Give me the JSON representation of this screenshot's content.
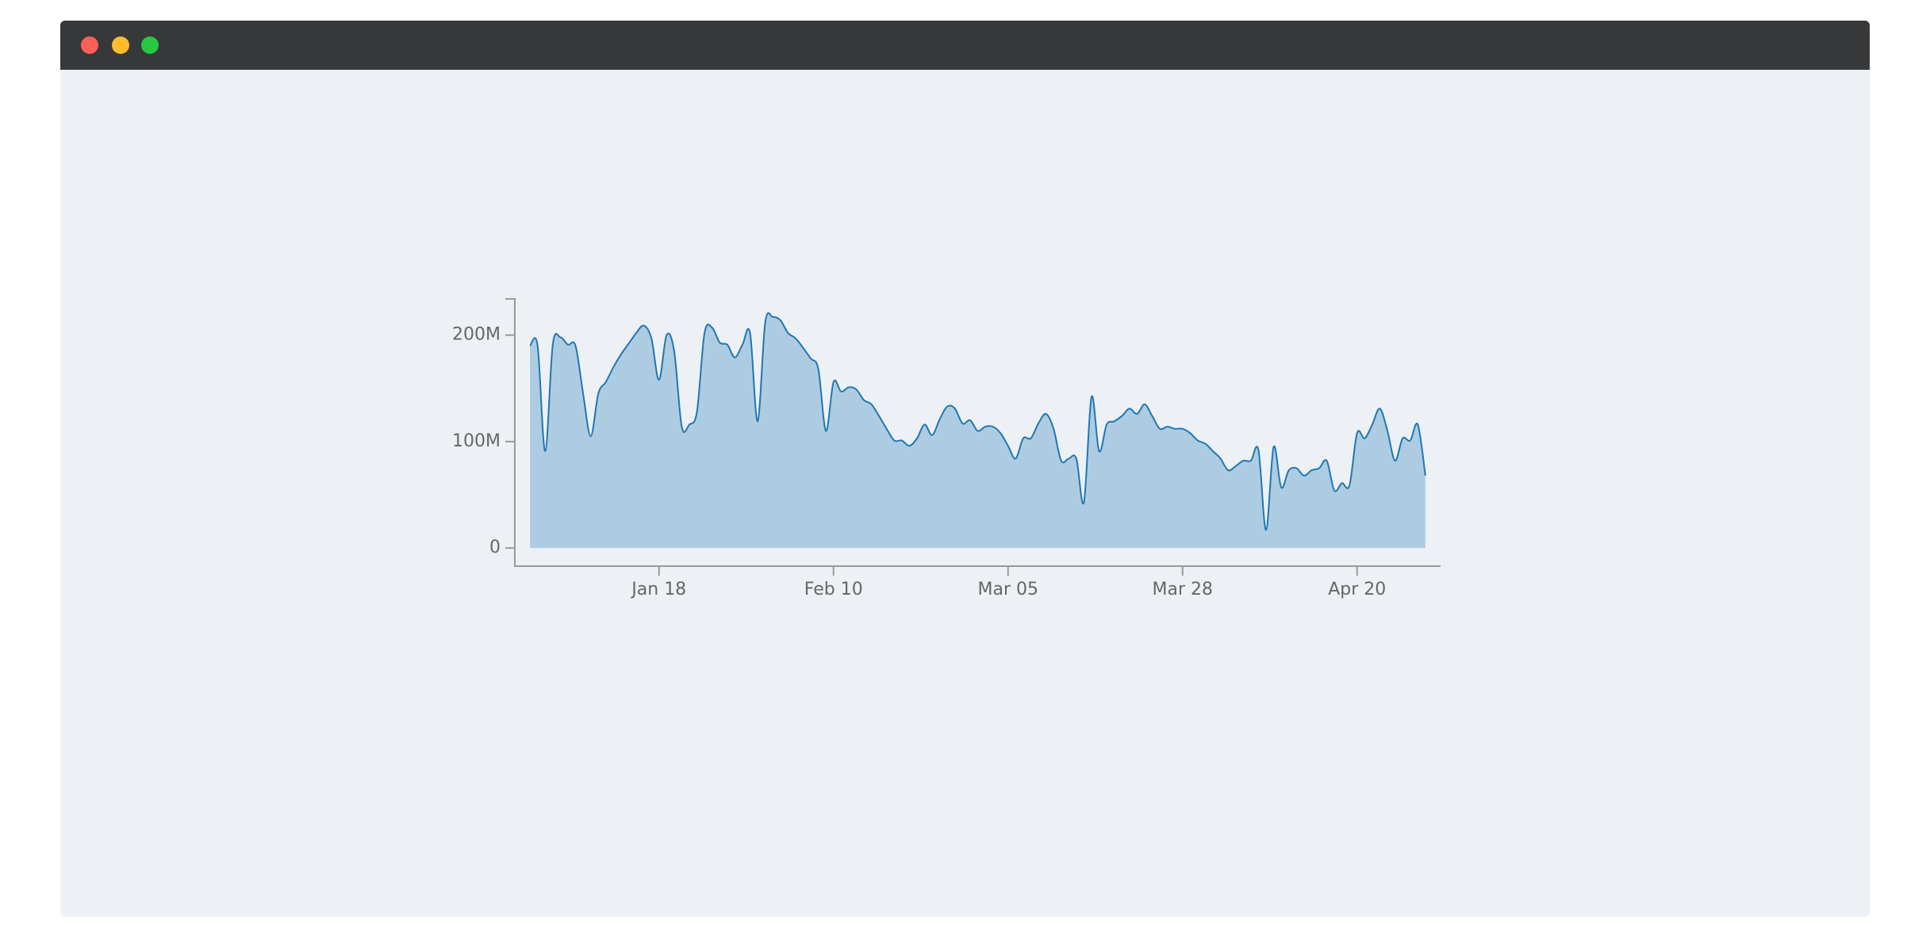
{
  "chart_data": {
    "type": "area",
    "color": "#1f77b4",
    "x": [
      "Jan 01",
      "Jan 02",
      "Jan 03",
      "Jan 04",
      "Jan 05",
      "Jan 06",
      "Jan 07",
      "Jan 08",
      "Jan 09",
      "Jan 10",
      "Jan 11",
      "Jan 12",
      "Jan 13",
      "Jan 14",
      "Jan 15",
      "Jan 16",
      "Jan 17",
      "Jan 18",
      "Jan 19",
      "Jan 20",
      "Jan 21",
      "Jan 22",
      "Jan 23",
      "Jan 24",
      "Jan 25",
      "Jan 26",
      "Jan 27",
      "Jan 28",
      "Jan 29",
      "Jan 30",
      "Jan 31",
      "Feb 01",
      "Feb 02",
      "Feb 03",
      "Feb 04",
      "Feb 05",
      "Feb 06",
      "Feb 07",
      "Feb 08",
      "Feb 09",
      "Feb 10",
      "Feb 11",
      "Feb 12",
      "Feb 13",
      "Feb 14",
      "Feb 15",
      "Feb 16",
      "Feb 17",
      "Feb 18",
      "Feb 19",
      "Feb 20",
      "Feb 21",
      "Feb 22",
      "Feb 23",
      "Feb 24",
      "Feb 25",
      "Feb 26",
      "Feb 27",
      "Feb 28",
      "Mar 01",
      "Mar 02",
      "Mar 03",
      "Mar 04",
      "Mar 05",
      "Mar 06",
      "Mar 07",
      "Mar 08",
      "Mar 09",
      "Mar 10",
      "Mar 11",
      "Mar 12",
      "Mar 13",
      "Mar 14",
      "Mar 15",
      "Mar 16",
      "Mar 17",
      "Mar 18",
      "Mar 19",
      "Mar 20",
      "Mar 21",
      "Mar 22",
      "Mar 23",
      "Mar 24",
      "Mar 25",
      "Mar 26",
      "Mar 27",
      "Mar 28",
      "Mar 29",
      "Mar 30",
      "Mar 31",
      "Apr 01",
      "Apr 02",
      "Apr 03",
      "Apr 04",
      "Apr 05",
      "Apr 06",
      "Apr 07",
      "Apr 08",
      "Apr 09",
      "Apr 10",
      "Apr 11",
      "Apr 12",
      "Apr 13",
      "Apr 14",
      "Apr 15",
      "Apr 16",
      "Apr 17",
      "Apr 18",
      "Apr 19",
      "Apr 20",
      "Apr 21",
      "Apr 22",
      "Apr 23",
      "Apr 24",
      "Apr 25",
      "Apr 26",
      "Apr 27",
      "Apr 28",
      "Apr 29"
    ],
    "values": [
      190000000,
      190000000,
      91000000,
      191000000,
      198000000,
      191000000,
      190000000,
      145000000,
      105000000,
      145000000,
      156000000,
      170000000,
      182000000,
      192000000,
      202000000,
      209000000,
      197000000,
      158000000,
      200000000,
      185000000,
      114000000,
      116000000,
      128000000,
      202000000,
      207000000,
      193000000,
      191000000,
      179000000,
      191000000,
      202000000,
      119000000,
      212000000,
      217000000,
      214000000,
      202000000,
      197000000,
      188000000,
      178000000,
      168000000,
      110000000,
      156000000,
      147000000,
      151000000,
      149000000,
      139000000,
      135000000,
      124000000,
      112000000,
      101000000,
      101000000,
      96000000,
      103000000,
      116000000,
      106000000,
      121000000,
      133000000,
      131000000,
      117000000,
      120000000,
      110000000,
      114000000,
      114000000,
      108000000,
      96000000,
      84000000,
      103000000,
      103000000,
      117000000,
      126000000,
      112000000,
      82000000,
      84000000,
      84000000,
      43000000,
      142000000,
      91000000,
      116000000,
      119000000,
      124000000,
      131000000,
      126000000,
      135000000,
      124000000,
      112000000,
      114000000,
      112000000,
      112000000,
      108000000,
      101000000,
      98000000,
      91000000,
      84000000,
      73000000,
      77000000,
      82000000,
      82000000,
      92000000,
      17000000,
      95000000,
      57000000,
      73000000,
      75000000,
      68000000,
      73000000,
      75000000,
      82000000,
      54000000,
      61000000,
      59000000,
      108000000,
      103000000,
      116000000,
      131000000,
      110000000,
      82000000,
      103000000,
      101000000,
      116000000,
      68000000
    ],
    "xlim": [
      "Dec 30",
      "May 01"
    ],
    "xticks": [
      "Jan 18",
      "Feb 10",
      "Mar 05",
      "Mar 28",
      "Apr 20"
    ],
    "ylim": [
      -17000000,
      234000000
    ],
    "yticks": [
      0,
      {
        "value": 100000000,
        "label": "100M"
      },
      {
        "value": 200000000,
        "label": "200M"
      }
    ]
  }
}
